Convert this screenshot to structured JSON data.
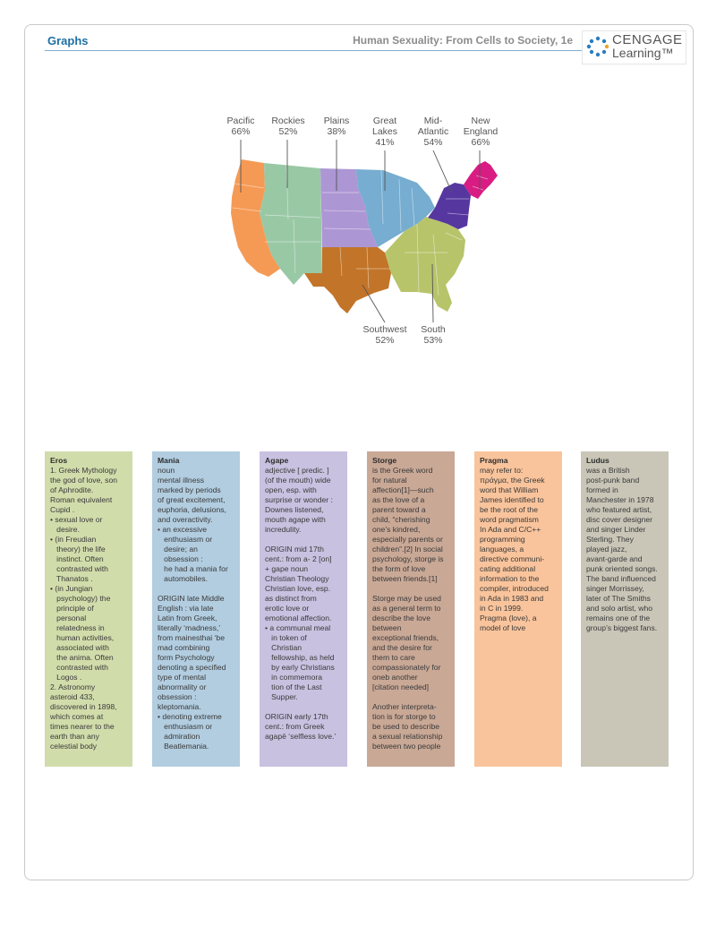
{
  "header": {
    "title": "Graphs",
    "book_title": "Human Sexuality: From Cells to Society, 1e"
  },
  "logo": {
    "line1": "CENGAGE",
    "line2": "Learning™"
  },
  "map": {
    "regions": [
      {
        "id": "pacific",
        "name": "Pacific",
        "value": "66%",
        "color": "#f59a55"
      },
      {
        "id": "rockies",
        "name": "Rockies",
        "value": "52%",
        "color": "#99c8a5"
      },
      {
        "id": "plains",
        "name": "Plains",
        "value": "38%",
        "color": "#ad96d4"
      },
      {
        "id": "great-lakes",
        "name": "Great Lakes",
        "value": "41%",
        "color": "#76add0"
      },
      {
        "id": "mid-atlantic",
        "name": "Mid-Atlantic",
        "value": "54%",
        "color": "#5637a0"
      },
      {
        "id": "new-england",
        "name": "New England",
        "value": "66%",
        "color": "#d81c83"
      },
      {
        "id": "southwest",
        "name": "Southwest",
        "value": "52%",
        "color": "#c27428"
      },
      {
        "id": "south",
        "name": "South",
        "value": "53%",
        "color": "#b7c46a"
      }
    ],
    "label_lines": {
      "pacific": [
        "Pacific",
        "66%"
      ],
      "rockies": [
        "Rockies",
        "52%"
      ],
      "plains": [
        "Plains",
        "38%"
      ],
      "great-lakes": [
        "Great",
        "Lakes",
        "41%"
      ],
      "mid-atlantic": [
        "Mid-",
        "Atlantic",
        "54%"
      ],
      "new-england": [
        "New",
        "England",
        "66%"
      ],
      "southwest": [
        "Southwest",
        "52%"
      ],
      "south": [
        "South",
        "53%"
      ]
    }
  },
  "cards": [
    {
      "id": "eros",
      "title": "Eros",
      "color": "#d1dcab",
      "lines": [
        "1. Greek Mythology",
        "the god of love, son",
        "of Aphrodite.",
        "Roman equivalent",
        "Cupid .",
        "• sexual love or",
        "   desire.",
        "• (in Freudian",
        "   theory) the life",
        "   instinct. Often",
        "   contrasted with",
        "   Thanatos .",
        "• (in Jungian",
        "   psychology) the",
        "   principle of",
        "   personal",
        "   relatedness in",
        "   human activities,",
        "   associated with",
        "   the anima. Often",
        "   contrasted with",
        "   Logos .",
        "2. Astronomy",
        "asteroid 433,",
        "discovered in 1898,",
        "which comes at",
        "times nearer to the",
        "earth than any",
        "celestial body"
      ]
    },
    {
      "id": "mania",
      "title": "Mania",
      "color": "#b2cde0",
      "lines": [
        "noun",
        "mental illness",
        "marked by periods",
        "of great excitement,",
        "euphoria, delusions,",
        "and overactivity.",
        "• an excessive",
        "   enthusiasm or",
        "   desire; an",
        "   obsession :",
        "   he had a mania for",
        "   automobiles.",
        "",
        "ORIGIN late Middle",
        "English : via late",
        "Latin from Greek,",
        "literally ‘madness,’",
        "from mainesthai ‘be",
        "mad combining",
        "form Psychology",
        "denoting a specified",
        "type of mental",
        "abnormality or",
        "obsession :",
        "kleptomania.",
        "• denoting extreme",
        "   enthusiasm or",
        "   admiration",
        "   Beatlemania."
      ]
    },
    {
      "id": "agape",
      "title": "Agape",
      "color": "#c8c1e0",
      "lines": [
        "adjective [ predic. ]",
        "(of the mouth) wide",
        "open, esp. with",
        "surprise or wonder :",
        "Downes listened,",
        "mouth agape with",
        "incredulity.",
        "",
        "ORIGIN mid 17th",
        "cent.: from a- 2 [on]",
        "+ gape noun",
        "Christian Theology",
        "Christian love, esp.",
        "as distinct from",
        "erotic love or",
        "emotional affection.",
        "• a communal meal",
        "   in token of",
        "   Christian",
        "   fellowship, as held",
        "   by early Christians",
        "   in commemora",
        "   tion of the Last",
        "   Supper.",
        "",
        "ORIGIN early 17th",
        "cent.: from Greek",
        "agapē ‘selfless love.’"
      ]
    },
    {
      "id": "storge",
      "title": "Storge",
      "color": "#c9a896",
      "lines": [
        "is the Greek word",
        "for natural",
        "affection[1]—such",
        "as the love of a",
        "parent toward a",
        "child, “cherishing",
        "one’s kindred,",
        "especially parents or",
        "children”.[2] In social",
        "psychology, storge is",
        "the form of love",
        "between friends.[1]",
        "",
        "Storge may be used",
        "as a general term to",
        "describe the love",
        "between",
        "exceptional friends,",
        "and the desire for",
        "them to care",
        "compassionately for",
        "oneb another",
        "[citation needed]",
        "",
        "Another interpreta-",
        "tion is for storge to",
        "be used to describe",
        "a sexual relationship",
        "between two people"
      ]
    },
    {
      "id": "pragma",
      "title": "Pragma",
      "color": "#f9c49c",
      "lines": [
        "may refer to:",
        "πράγμα, the Greek",
        "word that William",
        "James identified to",
        "be the root of the",
        "word pragmatism",
        "In Ada and C/C++",
        "programming",
        "languages, a",
        "directive communi-",
        "cating additional",
        "information to the",
        "compiler, introduced",
        "in Ada in 1983 and",
        "in C in 1999.",
        "Pragma (love), a",
        "model of love"
      ]
    },
    {
      "id": "ludus",
      "title": "Ludus",
      "color": "#c9c6b8",
      "lines": [
        "was a British",
        "post-punk band",
        "formed in",
        "Manchester in 1978",
        "who featured artist,",
        "disc cover designer",
        "and singer Linder",
        "Sterling. They",
        "played jazz,",
        "avant-garde and",
        "punk oriented songs.",
        "The band influenced",
        "singer Morrissey,",
        "later of The Smiths",
        "and solo artist, who",
        "remains one of the",
        "group’s biggest fans."
      ]
    }
  ]
}
